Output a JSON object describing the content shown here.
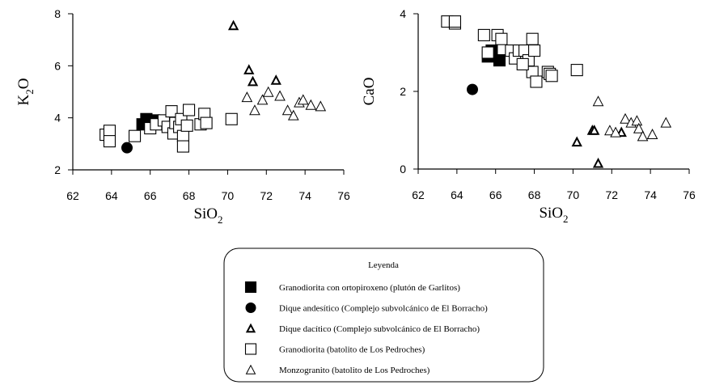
{
  "chart_data": [
    {
      "type": "scatter",
      "panel": "left",
      "xlabel": "SiO",
      "xlabel_sub": "2",
      "ylabel": "K",
      "ylabel_sub": "2",
      "ylabel_suffix": "O",
      "xlim": [
        62,
        76
      ],
      "ylim": [
        2,
        8
      ],
      "xticks": [
        "62",
        "64",
        "66",
        "68",
        "70",
        "72",
        "74",
        "76"
      ],
      "yticks": [
        "2",
        "4",
        "6",
        "8"
      ],
      "series": [
        {
          "key": "ortho",
          "points": [
            [
              65.6,
              3.75
            ],
            [
              65.8,
              3.95
            ],
            [
              66.0,
              3.8
            ],
            [
              66.2,
              3.9
            ]
          ]
        },
        {
          "key": "andesitic",
          "points": [
            [
              64.8,
              2.85
            ]
          ]
        },
        {
          "key": "dacitic",
          "points": [
            [
              70.3,
              7.55
            ],
            [
              71.1,
              5.85
            ],
            [
              71.3,
              5.4
            ],
            [
              72.5,
              5.45
            ]
          ]
        },
        {
          "key": "granodiorite",
          "points": [
            [
              63.7,
              3.35
            ],
            [
              63.9,
              3.5
            ],
            [
              63.9,
              3.1
            ],
            [
              65.2,
              3.3
            ],
            [
              66.0,
              3.6
            ],
            [
              66.3,
              3.75
            ],
            [
              66.7,
              3.9
            ],
            [
              66.9,
              3.65
            ],
            [
              67.1,
              4.25
            ],
            [
              67.2,
              3.4
            ],
            [
              67.3,
              3.8
            ],
            [
              67.5,
              3.65
            ],
            [
              67.6,
              3.95
            ],
            [
              67.7,
              3.3
            ],
            [
              67.7,
              2.9
            ],
            [
              67.9,
              3.7
            ],
            [
              68.0,
              4.3
            ],
            [
              68.6,
              3.75
            ],
            [
              68.8,
              4.15
            ],
            [
              68.9,
              3.8
            ],
            [
              70.2,
              3.95
            ]
          ]
        },
        {
          "key": "monzogranite",
          "points": [
            [
              71.0,
              4.8
            ],
            [
              71.4,
              4.3
            ],
            [
              71.8,
              4.7
            ],
            [
              72.1,
              5.0
            ],
            [
              72.7,
              4.85
            ],
            [
              73.1,
              4.3
            ],
            [
              73.4,
              4.1
            ],
            [
              73.7,
              4.6
            ],
            [
              73.9,
              4.7
            ],
            [
              74.3,
              4.5
            ],
            [
              74.8,
              4.45
            ]
          ]
        }
      ]
    },
    {
      "type": "scatter",
      "panel": "right",
      "xlabel": "SiO",
      "xlabel_sub": "2",
      "ylabel": "CaO",
      "xlim": [
        62,
        76
      ],
      "ylim": [
        0,
        4
      ],
      "xticks": [
        "62",
        "64",
        "66",
        "68",
        "70",
        "72",
        "74",
        "76"
      ],
      "yticks": [
        "0",
        "2",
        "4"
      ],
      "series": [
        {
          "key": "ortho",
          "points": [
            [
              65.6,
              2.9
            ],
            [
              65.8,
              3.05
            ],
            [
              66.2,
              2.8
            ]
          ]
        },
        {
          "key": "andesitic",
          "points": [
            [
              64.8,
              2.05
            ]
          ]
        },
        {
          "key": "dacitic",
          "points": [
            [
              70.2,
              0.7
            ],
            [
              71.0,
              1.0
            ],
            [
              71.3,
              0.15
            ],
            [
              72.5,
              0.95
            ],
            [
              71.1,
              1.0
            ]
          ]
        },
        {
          "key": "granodiorite",
          "points": [
            [
              63.5,
              3.8
            ],
            [
              63.9,
              3.75
            ],
            [
              63.9,
              3.8
            ],
            [
              65.4,
              3.45
            ],
            [
              65.6,
              3.0
            ],
            [
              66.1,
              3.45
            ],
            [
              66.3,
              3.35
            ],
            [
              66.8,
              3.05
            ],
            [
              67.0,
              2.85
            ],
            [
              67.2,
              3.05
            ],
            [
              67.5,
              3.05
            ],
            [
              67.7,
              2.8
            ],
            [
              67.9,
              2.5
            ],
            [
              67.9,
              3.35
            ],
            [
              68.0,
              3.05
            ],
            [
              68.1,
              2.25
            ],
            [
              68.7,
              2.5
            ],
            [
              68.8,
              2.45
            ],
            [
              68.9,
              2.4
            ],
            [
              70.2,
              2.55
            ],
            [
              67.4,
              2.7
            ]
          ]
        },
        {
          "key": "monzogranite",
          "points": [
            [
              71.3,
              1.75
            ],
            [
              71.9,
              1.0
            ],
            [
              72.2,
              0.95
            ],
            [
              72.7,
              1.3
            ],
            [
              73.0,
              1.2
            ],
            [
              73.3,
              1.25
            ],
            [
              73.4,
              1.05
            ],
            [
              73.6,
              0.85
            ],
            [
              74.1,
              0.9
            ],
            [
              74.8,
              1.2
            ]
          ]
        }
      ]
    }
  ],
  "legend": {
    "title": "Leyenda",
    "items": [
      {
        "key": "ortho",
        "label": "Granodiorita con ortopiroxeno (plutón de Garlitos)"
      },
      {
        "key": "andesitic",
        "label": "Dique andesítico (Complejo subvolcánico de El Borracho)"
      },
      {
        "key": "dacitic",
        "label": "Dique dacítico (Complejo subvolcánico de El Borracho)"
      },
      {
        "key": "granodiorite",
        "label": "Granodiorita (batolito de Los Pedroches)"
      },
      {
        "key": "monzogranite",
        "label": "Monzogranito (batolito de Los Pedroches)"
      }
    ]
  },
  "marker_styles": {
    "ortho": {
      "shape": "square",
      "fill": "#000000"
    },
    "andesitic": {
      "shape": "circle",
      "fill": "#000000"
    },
    "dacitic": {
      "shape": "triangle",
      "fill": "#ffffff",
      "stroke_width": "bold"
    },
    "granodiorite": {
      "shape": "square",
      "fill": "#ffffff"
    },
    "monzogranite": {
      "shape": "triangle",
      "fill": "#ffffff"
    }
  }
}
